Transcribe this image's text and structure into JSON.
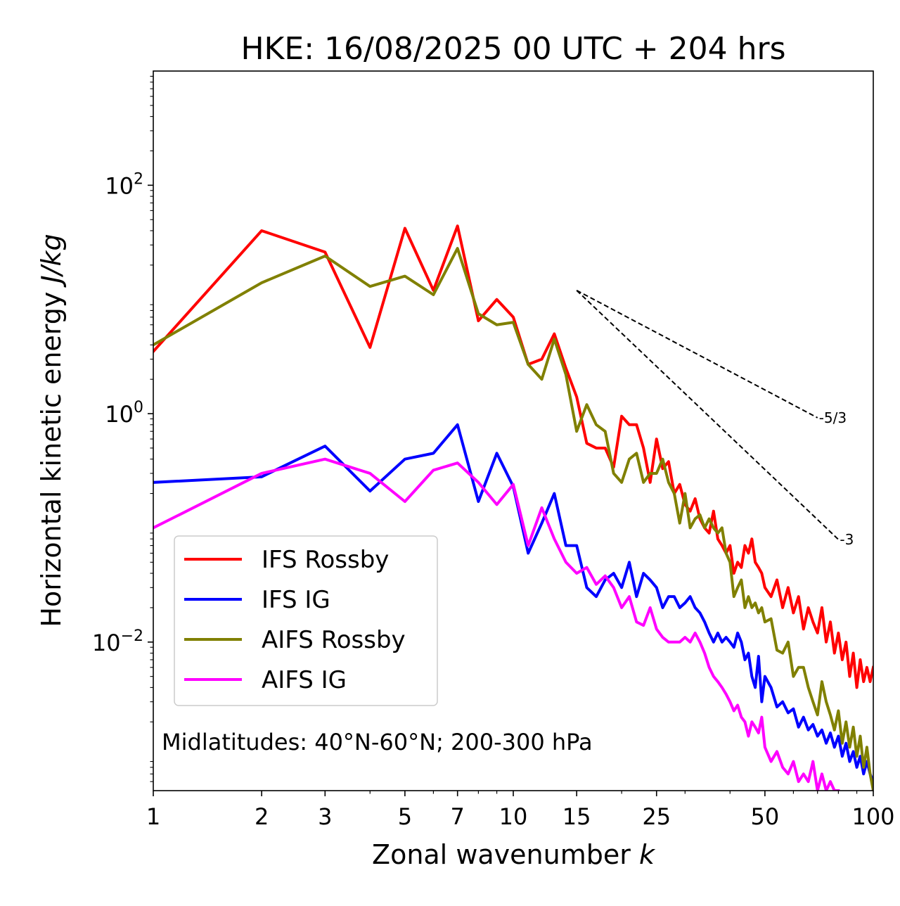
{
  "chart_data": {
    "type": "line",
    "title": "HKE: 16/08/2025 00 UTC + 204 hrs",
    "xlabel": "Zonal wavenumber ",
    "xlabel_var": "k",
    "ylabel": "Horizontal kinetic energy ",
    "ylabel_units": "J/kg",
    "xscale": "log",
    "yscale": "log",
    "xlim": [
      1,
      100
    ],
    "ylim": [
      0.0005,
      1000
    ],
    "x_ticks": [
      1,
      2,
      3,
      5,
      7,
      10,
      15,
      25,
      50,
      100
    ],
    "x_tick_labels": [
      "1",
      "2",
      "3",
      "5",
      "7",
      "10",
      "15",
      "25",
      "50",
      "100"
    ],
    "y_ticks": [
      0.01,
      1,
      100
    ],
    "y_tick_base": "10",
    "y_tick_exponents": [
      "−2",
      "0",
      "2"
    ],
    "annotation": "Midlatitudes: 40°N-60°N; 200-300 hPa",
    "legend_position": "lower-left",
    "series": [
      {
        "name": "IFS Rossby",
        "color": "#ff0000",
        "x": [
          1,
          2,
          3,
          4,
          5,
          6,
          7,
          8,
          9,
          10,
          11,
          12,
          13,
          14,
          15,
          16,
          17,
          18,
          19,
          20,
          21,
          22,
          23,
          24,
          25,
          26,
          27,
          28,
          29,
          30,
          31,
          32,
          33,
          34,
          35,
          36,
          37,
          38,
          39,
          40,
          41,
          42,
          43,
          44,
          45,
          46,
          47,
          48,
          49,
          50,
          52,
          54,
          56,
          58,
          60,
          62,
          64,
          66,
          68,
          70,
          72,
          74,
          76,
          78,
          80,
          82,
          84,
          86,
          88,
          90,
          92,
          94,
          96,
          98,
          100
        ],
        "values": [
          3.5,
          40,
          26,
          3.8,
          42,
          12,
          44,
          6.5,
          10,
          7,
          2.7,
          3.0,
          5.0,
          2.5,
          1.4,
          0.55,
          0.5,
          0.5,
          0.34,
          0.95,
          0.8,
          0.8,
          0.5,
          0.25,
          0.6,
          0.33,
          0.38,
          0.2,
          0.24,
          0.16,
          0.14,
          0.18,
          0.12,
          0.1,
          0.09,
          0.14,
          0.08,
          0.07,
          0.06,
          0.07,
          0.04,
          0.05,
          0.045,
          0.07,
          0.06,
          0.08,
          0.05,
          0.045,
          0.04,
          0.03,
          0.025,
          0.035,
          0.02,
          0.03,
          0.018,
          0.025,
          0.013,
          0.02,
          0.015,
          0.012,
          0.02,
          0.01,
          0.015,
          0.008,
          0.012,
          0.007,
          0.01,
          0.005,
          0.008,
          0.004,
          0.007,
          0.0045,
          0.006,
          0.0045,
          0.006
        ]
      },
      {
        "name": "IFS IG",
        "color": "#0000ff",
        "x": [
          1,
          2,
          3,
          4,
          5,
          6,
          7,
          8,
          9,
          10,
          11,
          12,
          13,
          14,
          15,
          16,
          17,
          18,
          19,
          20,
          21,
          22,
          23,
          24,
          25,
          26,
          27,
          28,
          29,
          30,
          31,
          32,
          33,
          34,
          35,
          36,
          37,
          38,
          39,
          40,
          41,
          42,
          43,
          44,
          45,
          46,
          47,
          48,
          49,
          50,
          52,
          54,
          56,
          58,
          60,
          62,
          64,
          66,
          68,
          70,
          72,
          74,
          76,
          78,
          80,
          82,
          84,
          86,
          88,
          90,
          92,
          94,
          96,
          98,
          100
        ],
        "values": [
          0.25,
          0.28,
          0.52,
          0.21,
          0.4,
          0.45,
          0.8,
          0.17,
          0.45,
          0.23,
          0.06,
          0.11,
          0.2,
          0.07,
          0.07,
          0.03,
          0.025,
          0.035,
          0.04,
          0.03,
          0.05,
          0.025,
          0.04,
          0.035,
          0.03,
          0.02,
          0.025,
          0.025,
          0.02,
          0.022,
          0.025,
          0.02,
          0.018,
          0.015,
          0.012,
          0.01,
          0.012,
          0.01,
          0.011,
          0.01,
          0.009,
          0.012,
          0.01,
          0.007,
          0.008,
          0.005,
          0.004,
          0.0075,
          0.003,
          0.005,
          0.004,
          0.0027,
          0.003,
          0.0024,
          0.0026,
          0.0018,
          0.0022,
          0.0017,
          0.0019,
          0.0015,
          0.0017,
          0.0013,
          0.0016,
          0.0012,
          0.0015,
          0.001,
          0.0013,
          0.0009,
          0.0011,
          0.0008,
          0.001,
          0.0007,
          0.0009,
          0.0007,
          0.0006
        ]
      },
      {
        "name": "AIFS Rossby",
        "color": "#808000",
        "x": [
          1,
          2,
          3,
          4,
          5,
          6,
          7,
          8,
          9,
          10,
          11,
          12,
          13,
          14,
          15,
          16,
          17,
          18,
          19,
          20,
          21,
          22,
          23,
          24,
          25,
          26,
          27,
          28,
          29,
          30,
          31,
          32,
          33,
          34,
          35,
          36,
          37,
          38,
          39,
          40,
          41,
          42,
          43,
          44,
          45,
          46,
          47,
          48,
          49,
          50,
          52,
          54,
          56,
          58,
          60,
          62,
          64,
          66,
          68,
          70,
          72,
          74,
          76,
          78,
          80,
          82,
          84,
          86,
          88,
          90,
          92,
          94,
          96,
          98,
          100
        ],
        "values": [
          4.0,
          14,
          24,
          13,
          16,
          11,
          28,
          7.5,
          6,
          6.3,
          2.7,
          2.0,
          4.5,
          2.2,
          0.7,
          1.2,
          0.8,
          0.7,
          0.3,
          0.25,
          0.4,
          0.45,
          0.25,
          0.3,
          0.3,
          0.4,
          0.25,
          0.2,
          0.11,
          0.2,
          0.1,
          0.12,
          0.13,
          0.1,
          0.12,
          0.1,
          0.09,
          0.1,
          0.06,
          0.05,
          0.025,
          0.03,
          0.035,
          0.02,
          0.025,
          0.02,
          0.022,
          0.018,
          0.02,
          0.015,
          0.016,
          0.0085,
          0.008,
          0.01,
          0.005,
          0.006,
          0.006,
          0.004,
          0.003,
          0.0023,
          0.0045,
          0.003,
          0.0023,
          0.0017,
          0.0025,
          0.0013,
          0.002,
          0.0012,
          0.0018,
          0.001,
          0.0015,
          0.0008,
          0.0012,
          0.0007,
          0.0005
        ]
      },
      {
        "name": "AIFS IG",
        "color": "#ff00ff",
        "x": [
          1,
          2,
          3,
          4,
          5,
          6,
          7,
          8,
          9,
          10,
          11,
          12,
          13,
          14,
          15,
          16,
          17,
          18,
          19,
          20,
          21,
          22,
          23,
          24,
          25,
          26,
          27,
          28,
          29,
          30,
          31,
          32,
          33,
          34,
          35,
          36,
          37,
          38,
          39,
          40,
          41,
          42,
          43,
          44,
          45,
          46,
          47,
          48,
          49,
          50,
          52,
          54,
          56,
          58,
          60,
          62,
          64,
          66,
          68,
          70,
          72,
          74,
          76,
          78,
          80
        ],
        "values": [
          0.1,
          0.3,
          0.4,
          0.3,
          0.17,
          0.32,
          0.37,
          0.25,
          0.16,
          0.24,
          0.07,
          0.15,
          0.08,
          0.05,
          0.04,
          0.045,
          0.032,
          0.038,
          0.03,
          0.02,
          0.025,
          0.015,
          0.014,
          0.02,
          0.013,
          0.011,
          0.01,
          0.01,
          0.01,
          0.011,
          0.01,
          0.012,
          0.01,
          0.008,
          0.006,
          0.005,
          0.0045,
          0.004,
          0.0035,
          0.003,
          0.0025,
          0.0028,
          0.0022,
          0.002,
          0.0015,
          0.002,
          0.0018,
          0.0016,
          0.0022,
          0.0012,
          0.0009,
          0.0011,
          0.0008,
          0.0007,
          0.0009,
          0.0006,
          0.0007,
          0.0006,
          0.0009,
          0.0005,
          0.0007,
          0.0005,
          0.0006,
          0.0005,
          0.0005
        ]
      }
    ],
    "reference_lines": [
      {
        "label": "-5/3",
        "slope": -1.6667,
        "x_start": 15,
        "y_start": 12,
        "x_end": 70
      },
      {
        "label": "-3",
        "slope": -3,
        "x_start": 15,
        "y_start": 12,
        "x_end": 80
      }
    ]
  }
}
